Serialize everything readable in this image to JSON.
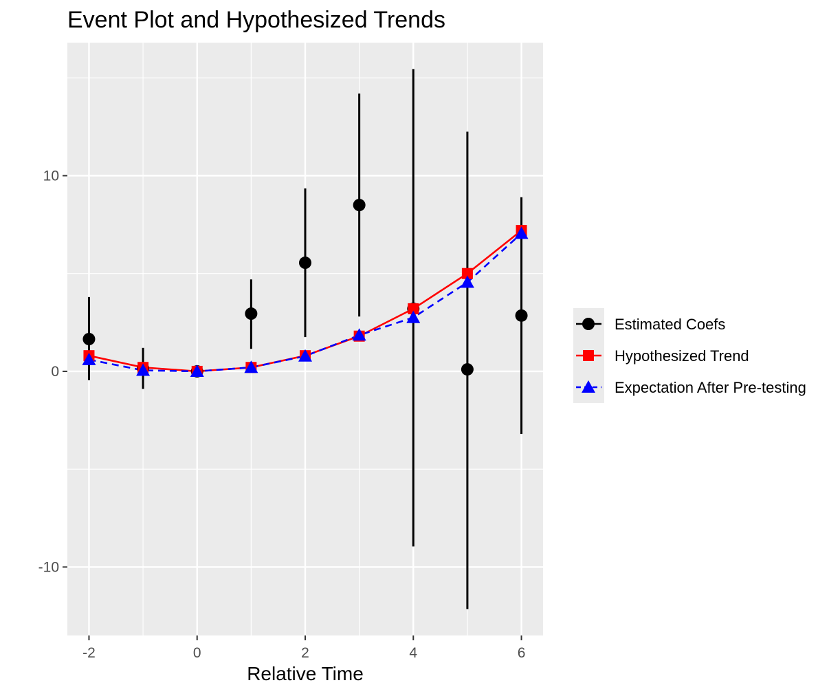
{
  "chart_data": {
    "type": "scatter",
    "title": "Event Plot and Hypothesized Trends",
    "xlabel": "Relative Time",
    "ylabel": "",
    "xlim": [
      -2.4,
      6.4
    ],
    "ylim": [
      -13.5,
      16.8
    ],
    "x_ticks": [
      -2,
      0,
      2,
      4,
      6
    ],
    "y_ticks": [
      -10,
      0,
      10
    ],
    "x_tick_labels": [
      "-2",
      "0",
      "2",
      "4",
      "6"
    ],
    "y_tick_labels": [
      "-10",
      "0",
      "10"
    ],
    "grid": true,
    "legend_position": "right",
    "panel_background": "#ebebeb",
    "series": [
      {
        "name": "Estimated Coefs",
        "color": "#000000",
        "marker": "circle",
        "line": "errorbar",
        "x": [
          -2,
          -1,
          0,
          1,
          2,
          3,
          4,
          5,
          6
        ],
        "y": [
          1.65,
          0.15,
          0.0,
          2.95,
          5.55,
          8.5,
          3.2,
          0.1,
          2.85
        ],
        "ci_low": [
          -0.45,
          -0.9,
          0.0,
          1.15,
          1.75,
          2.8,
          -8.95,
          -12.15,
          -3.2
        ],
        "ci_high": [
          3.8,
          1.2,
          0.0,
          4.7,
          9.35,
          14.2,
          15.45,
          12.25,
          8.9
        ]
      },
      {
        "name": "Hypothesized Trend",
        "color": "#ff0000",
        "marker": "square",
        "line": "solid",
        "x": [
          -2,
          -1,
          0,
          1,
          2,
          3,
          4,
          5,
          6
        ],
        "y": [
          0.8,
          0.2,
          0.0,
          0.2,
          0.8,
          1.8,
          3.2,
          5.0,
          7.2
        ]
      },
      {
        "name": "Expectation After Pre-testing",
        "color": "#0000ff",
        "marker": "triangle",
        "line": "dashed",
        "x": [
          -2,
          -1,
          0,
          1,
          2,
          3,
          4,
          5,
          6
        ],
        "y": [
          0.6,
          0.05,
          0.0,
          0.2,
          0.78,
          1.85,
          2.75,
          4.55,
          7.05
        ]
      }
    ]
  }
}
